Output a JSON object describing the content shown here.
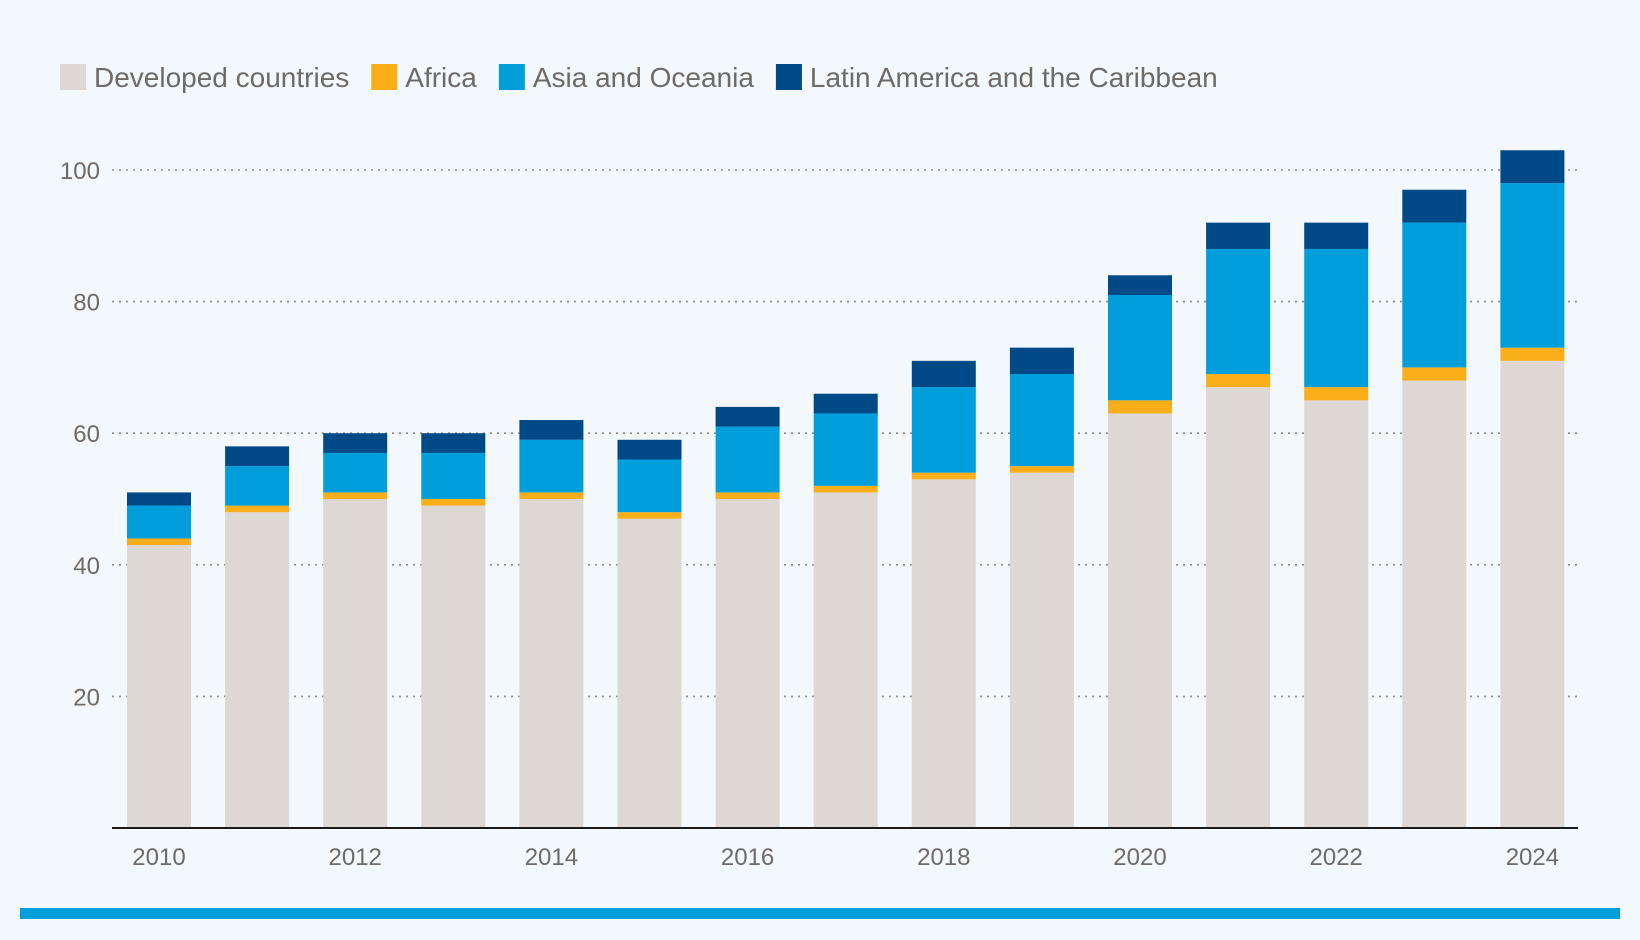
{
  "chart_data": {
    "type": "bar",
    "stacked": true,
    "title": "",
    "xlabel": "",
    "ylabel": "",
    "ylim": [
      0,
      110
    ],
    "yticks": [
      20,
      40,
      60,
      80,
      100
    ],
    "categories": [
      "2010",
      "2011",
      "2012",
      "2013",
      "2014",
      "2015",
      "2016",
      "2017",
      "2018",
      "2019",
      "2020",
      "2021",
      "2022",
      "2023",
      "2024"
    ],
    "xtick_labels": [
      "2010",
      "",
      "2012",
      "",
      "2014",
      "",
      "2016",
      "",
      "2018",
      "",
      "2020",
      "",
      "2022",
      "",
      "2024"
    ],
    "grid": "horizontal dotted",
    "legend_position": "top-left",
    "series": [
      {
        "name": "Developed countries",
        "color": "#ddd8d4",
        "values": [
          43,
          48,
          50,
          49,
          50,
          47,
          50,
          51,
          53,
          54,
          63,
          67,
          65,
          68,
          71
        ]
      },
      {
        "name": "Africa",
        "color": "#f9ae1a",
        "values": [
          1,
          1,
          1,
          1,
          1,
          1,
          1,
          1,
          1,
          1,
          2,
          2,
          2,
          2,
          2
        ]
      },
      {
        "name": "Asia and Oceania",
        "color": "#009edb",
        "values": [
          5,
          6,
          6,
          7,
          8,
          8,
          10,
          11,
          13,
          14,
          16,
          19,
          21,
          22,
          25
        ]
      },
      {
        "name": "Latin America and the Caribbean",
        "color": "#004987",
        "values": [
          2,
          3,
          3,
          3,
          3,
          3,
          3,
          3,
          4,
          4,
          3,
          4,
          4,
          5,
          5
        ]
      }
    ]
  },
  "colors": {
    "background": "#f3f8fc",
    "axis": "#1a1a1a",
    "grid": "#8c8c8c",
    "text": "#6e6a66",
    "footer_bar": "#009edb"
  }
}
